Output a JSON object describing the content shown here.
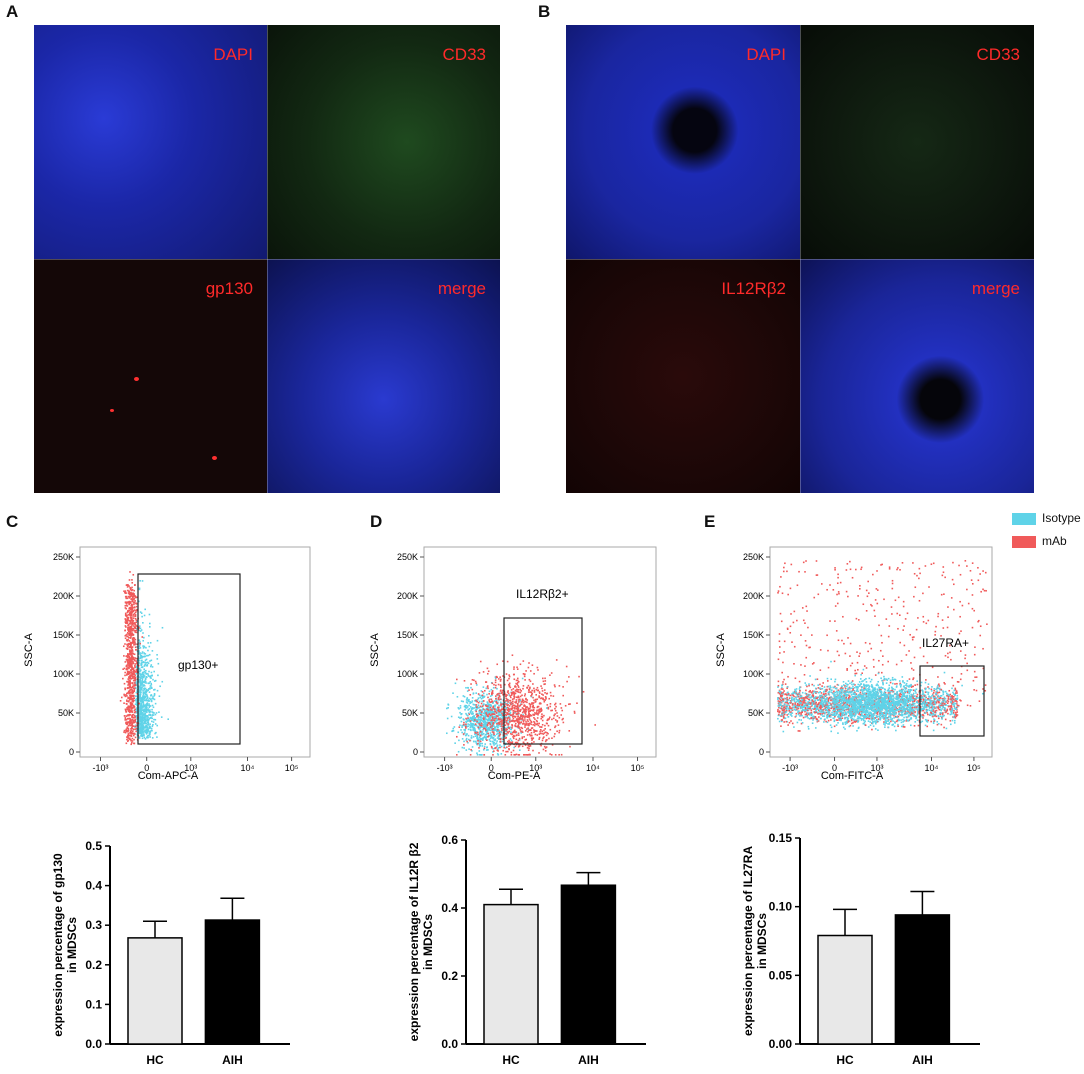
{
  "panels": {
    "A": {
      "letter": "A",
      "tiles": {
        "tl": "DAPI",
        "tr": "CD33",
        "bl": "gp130",
        "br": "merge"
      }
    },
    "B": {
      "letter": "B",
      "tiles": {
        "tl": "DAPI",
        "tr": "CD33",
        "bl": "IL12Rβ2",
        "br": "merge"
      }
    },
    "C": {
      "letter": "C",
      "gate_label": "gp130+",
      "xlabel": "Com-APC-A",
      "ylabel": "SSC-A"
    },
    "D": {
      "letter": "D",
      "gate_label": "IL12Rβ2+",
      "xlabel": "Com-PE-A",
      "ylabel": "SSC-A"
    },
    "E": {
      "letter": "E",
      "gate_label": "IL27RA+",
      "xlabel": "Com-FITC-A",
      "ylabel": "SSC-A"
    }
  },
  "legend": [
    {
      "name": "Isotype",
      "color": "#5fd3e8"
    },
    {
      "name": "mAb",
      "color": "#f05a5a"
    }
  ],
  "flow_axes": {
    "yticks": [
      "250K",
      "200K",
      "150K",
      "100K",
      "50K",
      "0"
    ],
    "xticks": [
      "-10³",
      "0",
      "10³",
      "10⁴",
      "10⁵"
    ]
  },
  "chart_data": [
    {
      "type": "bar",
      "categories": [
        "HC",
        "AIH"
      ],
      "values": [
        0.268,
        0.313
      ],
      "errors": [
        0.042,
        0.055
      ],
      "ylabel": "expression percentage of gp130\nin MDSCs",
      "ylim": [
        0.0,
        0.5
      ],
      "yticks": [
        "0.0",
        "0.1",
        "0.2",
        "0.3",
        "0.4",
        "0.5"
      ],
      "colors": [
        "#e8e8e8",
        "#000000"
      ]
    },
    {
      "type": "bar",
      "categories": [
        "HC",
        "AIH"
      ],
      "values": [
        0.41,
        0.467
      ],
      "errors": [
        0.045,
        0.037
      ],
      "ylabel": "expression percentage of IL12R β2\nin MDSCs",
      "ylim": [
        0.0,
        0.6
      ],
      "yticks": [
        "0.0",
        "0.2",
        "0.4",
        "0.6"
      ],
      "colors": [
        "#e8e8e8",
        "#000000"
      ]
    },
    {
      "type": "bar",
      "categories": [
        "HC",
        "AIH"
      ],
      "values": [
        0.079,
        0.094
      ],
      "errors": [
        0.019,
        0.017
      ],
      "ylabel": "expression percentage of IL27RA\nin MDSCs",
      "ylim": [
        0.0,
        0.15
      ],
      "yticks": [
        "0.00",
        "0.05",
        "0.10",
        "0.15"
      ],
      "colors": [
        "#e8e8e8",
        "#000000"
      ]
    }
  ]
}
